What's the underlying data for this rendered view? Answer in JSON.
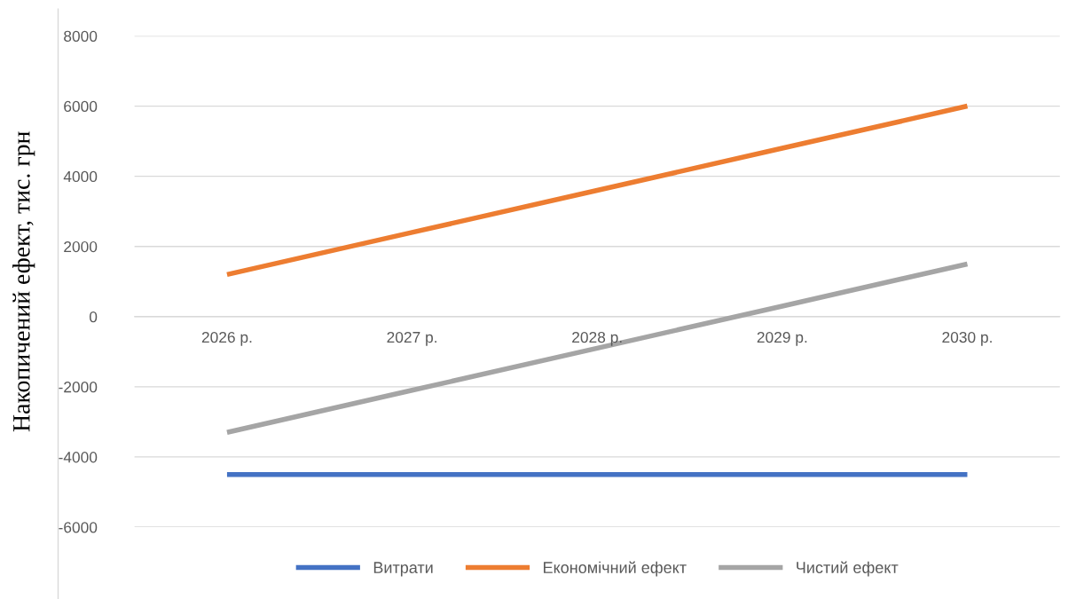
{
  "chart_data": {
    "type": "line",
    "ylabel": "Накопичений ефект, тис. грн",
    "categories": [
      "2026 р.",
      "2027 р.",
      "2028 р.",
      "2029 р.",
      "2030 р."
    ],
    "series": [
      {
        "name": "Витрати",
        "color": "#4472c4",
        "values": [
          -4500,
          -4500,
          -4500,
          -4500,
          -4500
        ]
      },
      {
        "name": "Економічний ефект",
        "color": "#ed7d31",
        "values": [
          1200,
          2400,
          3600,
          4800,
          6000
        ]
      },
      {
        "name": "Чистий ефект",
        "color": "#a5a5a5",
        "values": [
          -3300,
          -2100,
          -900,
          300,
          1500
        ]
      }
    ],
    "ylim": [
      -6000,
      8000
    ],
    "yticks": [
      -6000,
      -4000,
      -2000,
      0,
      2000,
      4000,
      6000,
      8000
    ],
    "grid": "y",
    "legend": "bottom",
    "marker": "none",
    "line_style": "solid"
  }
}
